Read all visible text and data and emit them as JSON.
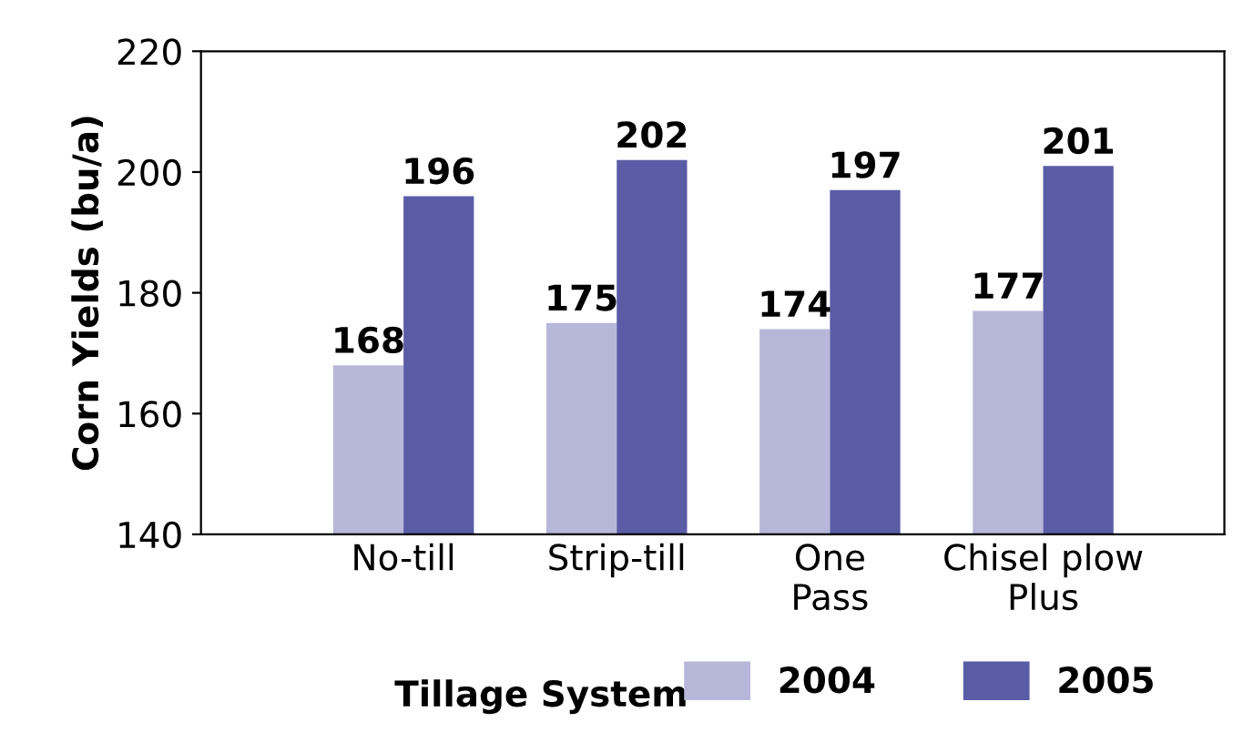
{
  "chart_data": {
    "type": "bar",
    "xlabel": "Tillage System",
    "ylabel": "Corn Yields (bu/a)",
    "categories": [
      "No-till",
      "Strip-till",
      "One\nPass",
      "Chisel plow\nPlus"
    ],
    "series": [
      {
        "name": "2004",
        "color": "#b7b7d9",
        "values": [
          168,
          175,
          174,
          177
        ]
      },
      {
        "name": "2005",
        "color": "#5a5ca6",
        "values": [
          196,
          202,
          197,
          201
        ]
      }
    ],
    "ylim": [
      140,
      220
    ],
    "yticks": [
      140,
      160,
      180,
      200,
      220
    ],
    "grid": false,
    "legend": "bottom",
    "data_labels": true
  }
}
